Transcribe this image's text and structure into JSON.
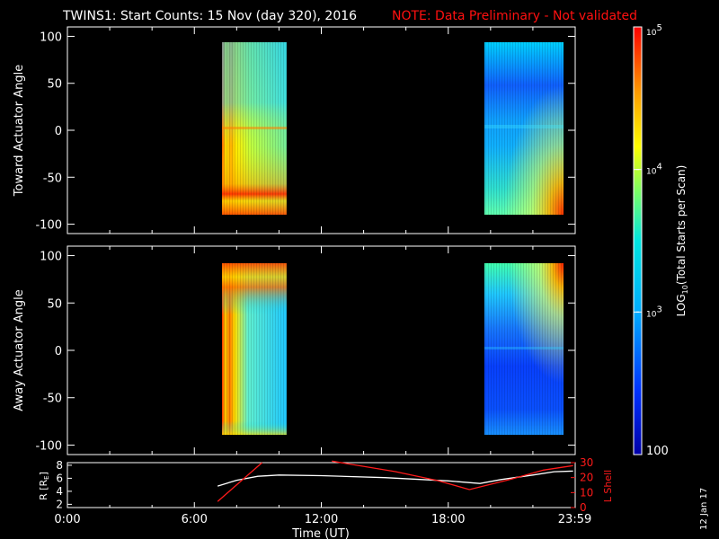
{
  "title": {
    "main": "TWINS1: Start Counts: 15 Nov (day 320), 2016",
    "note": "NOTE: Data Preliminary - Not validated"
  },
  "date_stamp": "12 Jan 17",
  "colors": {
    "background": "#000000",
    "foreground": "#ffffff",
    "note": "#ff1010",
    "lshell": "#ff1a1a",
    "r_line": "#ffffff"
  },
  "chart_data": [
    {
      "type": "heatmap",
      "name": "toward-panel",
      "ylabel": "Toward Actuator Angle",
      "xlim": [
        0,
        24
      ],
      "ylim": [
        -110,
        110
      ],
      "yticks": [
        100,
        50,
        0,
        -50,
        -100
      ],
      "blocks": [
        {
          "t_start": 7.1,
          "t_end": 10.05,
          "angle_min": -88,
          "angle_max": 90,
          "trend": "high counts (red/orange) at start and near -70 deg, decreasing to cyan by 10 UT"
        },
        {
          "t_start": 19.75,
          "t_end": 23.9,
          "angle_min": -88,
          "angle_max": 90,
          "trend": "low counts (blue/cyan) with enhancement (yellow/red) toward -90 deg after 22 UT"
        }
      ]
    },
    {
      "type": "heatmap",
      "name": "away-panel",
      "ylabel": "Away Actuator Angle",
      "xlim": [
        0,
        24
      ],
      "ylim": [
        -110,
        110
      ],
      "yticks": [
        100,
        50,
        0,
        -50,
        -100
      ],
      "blocks": [
        {
          "t_start": 7.1,
          "t_end": 10.05,
          "angle_min": -90,
          "angle_max": 90,
          "trend": "red/orange edge at start and +80 deg, interior cyan"
        },
        {
          "t_start": 19.75,
          "t_end": 23.9,
          "angle_min": -90,
          "angle_max": 90,
          "trend": "mostly blue, orange/red enhancement near +80 deg after 21.5 UT"
        }
      ]
    },
    {
      "type": "line",
      "name": "orbit-panel",
      "xlabel": "Time (UT)",
      "xlim": [
        0,
        24
      ],
      "xticks": [
        "0:00",
        "6:00",
        "12:00",
        "18:00",
        "23:59"
      ],
      "left_axis": {
        "label": "R [R",
        "label_sub": "E",
        "label_end": "]",
        "ylim": [
          1.5,
          8.4
        ],
        "ticks": [
          8,
          6,
          4,
          2
        ]
      },
      "right_axis": {
        "label": "L Shell",
        "ylim": [
          0,
          30
        ],
        "ticks": [
          30,
          20,
          10,
          0
        ]
      },
      "series": [
        {
          "axis": "left",
          "x": [
            7.1,
            8.0,
            9.0,
            10.0,
            12.0,
            15.0,
            18.0,
            19.5,
            20.5,
            22.0,
            23.0,
            23.9
          ],
          "y": [
            4.8,
            5.7,
            6.3,
            6.5,
            6.4,
            6.1,
            5.6,
            5.2,
            5.8,
            6.5,
            7.0,
            7.1
          ]
        },
        {
          "axis": "right",
          "x": [
            7.1,
            9.2
          ],
          "y": [
            4.0,
            30.0
          ]
        },
        {
          "axis": "right",
          "x": [
            12.5,
            15.5,
            17.5,
            19.0,
            21.0,
            22.5,
            23.9
          ],
          "y": [
            31.0,
            24.0,
            18.0,
            12.0,
            19.0,
            25.0,
            28.0
          ]
        }
      ]
    },
    {
      "type": "heatmap",
      "name": "colorbar",
      "scale": "log",
      "vmin": 100,
      "vmax": 100000,
      "tick_labels": [
        {
          "value": 100000,
          "base": "10",
          "exp": "5"
        },
        {
          "value": 10000,
          "base": "10",
          "exp": "4"
        },
        {
          "value": 1000,
          "base": "10",
          "exp": "3"
        },
        {
          "value": 100,
          "base": "100",
          "exp": ""
        }
      ],
      "label": {
        "pre": "LOG",
        "sub": "10",
        "post": "(Total Starts per Scan)"
      }
    }
  ]
}
